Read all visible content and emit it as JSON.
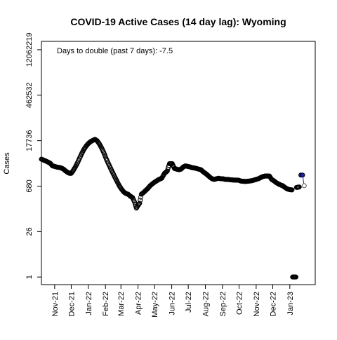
{
  "chart_data": {
    "type": "scatter",
    "title": "COVID-19 Active Cases (14 day lag): Wyoming",
    "xlabel": "",
    "ylabel": "Cases",
    "y_scale": "log",
    "annotation": "Days to double (past 7 days): -7.5",
    "x_range": [
      "2021-10-08",
      "2023-02-16"
    ],
    "y_range": [
      0.58,
      22000000
    ],
    "y_ticks": [
      {
        "value": 1,
        "label": "1"
      },
      {
        "value": 26,
        "label": "26"
      },
      {
        "value": 680,
        "label": "680"
      },
      {
        "value": 17736,
        "label": "17736"
      },
      {
        "value": 462532,
        "label": "462532"
      },
      {
        "value": 12062219,
        "label": "12062219"
      }
    ],
    "x_ticks": [
      {
        "date": "2021-11-01",
        "label": "Nov-21"
      },
      {
        "date": "2021-12-01",
        "label": "Dec-21"
      },
      {
        "date": "2022-01-01",
        "label": "Jan-22"
      },
      {
        "date": "2022-02-01",
        "label": "Feb-22"
      },
      {
        "date": "2022-03-01",
        "label": "Mar-22"
      },
      {
        "date": "2022-04-01",
        "label": "Apr-22"
      },
      {
        "date": "2022-05-01",
        "label": "May-22"
      },
      {
        "date": "2022-06-01",
        "label": "Jun-22"
      },
      {
        "date": "2022-07-01",
        "label": "Jul-22"
      },
      {
        "date": "2022-08-01",
        "label": "Aug-22"
      },
      {
        "date": "2022-09-01",
        "label": "Sep-22"
      },
      {
        "date": "2022-10-01",
        "label": "Oct-22"
      },
      {
        "date": "2022-11-01",
        "label": "Nov-22"
      },
      {
        "date": "2022-12-01",
        "label": "Dec-22"
      },
      {
        "date": "2023-01-01",
        "label": "Jan-23"
      }
    ],
    "grid": false,
    "point_style": "open circle",
    "colors": {
      "points": "#000000",
      "highlight": "#1f1fb4",
      "predicted": "#555555"
    },
    "series": [
      {
        "style": "observed",
        "points": [
          [
            "2021-10-08",
            4700
          ],
          [
            "2021-10-12",
            4400
          ],
          [
            "2021-10-16",
            4100
          ],
          [
            "2021-10-20",
            3800
          ],
          [
            "2021-10-24",
            3500
          ],
          [
            "2021-10-28",
            2900
          ],
          [
            "2021-11-01",
            2800
          ],
          [
            "2021-11-05",
            2650
          ],
          [
            "2021-11-09",
            2600
          ],
          [
            "2021-11-13",
            2500
          ],
          [
            "2021-11-17",
            2300
          ],
          [
            "2021-11-21",
            2000
          ],
          [
            "2021-11-25",
            1800
          ],
          [
            "2021-11-28",
            1700
          ],
          [
            "2021-12-01",
            1700
          ],
          [
            "2021-12-04",
            2000
          ],
          [
            "2021-12-08",
            2600
          ],
          [
            "2021-12-12",
            3500
          ],
          [
            "2021-12-16",
            5000
          ],
          [
            "2021-12-20",
            7000
          ],
          [
            "2021-12-24",
            9500
          ],
          [
            "2021-12-28",
            12000
          ],
          [
            "2022-01-01",
            14500
          ],
          [
            "2022-01-05",
            16500
          ],
          [
            "2022-01-09",
            18000
          ],
          [
            "2022-01-13",
            19500
          ],
          [
            "2022-01-17",
            17500
          ],
          [
            "2022-01-21",
            14000
          ],
          [
            "2022-01-25",
            10500
          ],
          [
            "2022-01-29",
            7500
          ],
          [
            "2022-02-02",
            5000
          ],
          [
            "2022-02-06",
            3500
          ],
          [
            "2022-02-10",
            2500
          ],
          [
            "2022-02-14",
            1800
          ],
          [
            "2022-02-18",
            1300
          ],
          [
            "2022-02-22",
            950
          ],
          [
            "2022-02-26",
            700
          ],
          [
            "2022-03-02",
            550
          ],
          [
            "2022-03-06",
            450
          ],
          [
            "2022-03-10",
            400
          ],
          [
            "2022-03-14",
            380
          ],
          [
            "2022-03-18",
            330
          ],
          [
            "2022-03-22",
            300
          ],
          [
            "2022-03-26",
            210
          ],
          [
            "2022-03-29",
            140
          ],
          [
            "2022-04-01",
            170
          ],
          [
            "2022-04-04",
            200
          ],
          [
            "2022-04-07",
            380
          ],
          [
            "2022-04-11",
            430
          ],
          [
            "2022-04-15",
            500
          ],
          [
            "2022-04-19",
            580
          ],
          [
            "2022-04-23",
            700
          ],
          [
            "2022-04-27",
            800
          ],
          [
            "2022-05-01",
            900
          ],
          [
            "2022-05-05",
            1000
          ],
          [
            "2022-05-09",
            1100
          ],
          [
            "2022-05-14",
            1200
          ],
          [
            "2022-05-19",
            1700
          ],
          [
            "2022-05-24",
            2000
          ],
          [
            "2022-05-28",
            3400
          ],
          [
            "2022-06-02",
            3400
          ],
          [
            "2022-06-06",
            2400
          ],
          [
            "2022-06-10",
            2300
          ],
          [
            "2022-06-14",
            2200
          ],
          [
            "2022-06-18",
            2300
          ],
          [
            "2022-06-22",
            2700
          ],
          [
            "2022-06-26",
            2900
          ],
          [
            "2022-06-30",
            2800
          ],
          [
            "2022-07-04",
            2700
          ],
          [
            "2022-07-08",
            2550
          ],
          [
            "2022-07-12",
            2500
          ],
          [
            "2022-07-16",
            2400
          ],
          [
            "2022-07-20",
            2300
          ],
          [
            "2022-07-24",
            2200
          ],
          [
            "2022-07-28",
            1900
          ],
          [
            "2022-08-01",
            1700
          ],
          [
            "2022-08-05",
            1500
          ],
          [
            "2022-08-09",
            1300
          ],
          [
            "2022-08-13",
            1150
          ],
          [
            "2022-08-17",
            1100
          ],
          [
            "2022-08-21",
            1150
          ],
          [
            "2022-08-25",
            1200
          ],
          [
            "2022-08-29",
            1150
          ],
          [
            "2022-09-02",
            1150
          ],
          [
            "2022-09-06",
            1100
          ],
          [
            "2022-09-10",
            1100
          ],
          [
            "2022-09-14",
            1080
          ],
          [
            "2022-09-18",
            1060
          ],
          [
            "2022-09-22",
            1050
          ],
          [
            "2022-09-26",
            1050
          ],
          [
            "2022-09-30",
            1040
          ],
          [
            "2022-10-04",
            980
          ],
          [
            "2022-10-08",
            960
          ],
          [
            "2022-10-12",
            950
          ],
          [
            "2022-10-16",
            960
          ],
          [
            "2022-10-20",
            980
          ],
          [
            "2022-10-24",
            1000
          ],
          [
            "2022-10-28",
            1050
          ],
          [
            "2022-11-01",
            1100
          ],
          [
            "2022-11-05",
            1150
          ],
          [
            "2022-11-09",
            1250
          ],
          [
            "2022-11-13",
            1350
          ],
          [
            "2022-11-17",
            1400
          ],
          [
            "2022-11-21",
            1400
          ],
          [
            "2022-11-25",
            1400
          ],
          [
            "2022-11-29",
            1100
          ],
          [
            "2022-12-03",
            1000
          ],
          [
            "2022-12-07",
            880
          ],
          [
            "2022-12-11",
            800
          ],
          [
            "2022-12-15",
            740
          ],
          [
            "2022-12-19",
            700
          ],
          [
            "2022-12-23",
            620
          ],
          [
            "2022-12-27",
            560
          ],
          [
            "2022-12-31",
            530
          ],
          [
            "2023-01-04",
            520
          ],
          [
            "2023-01-08",
            1.0
          ],
          [
            "2023-01-11",
            1.0
          ],
          [
            "2023-01-14",
            620
          ],
          [
            "2023-01-18",
            640
          ]
        ]
      },
      {
        "style": "highlighted",
        "points": [
          [
            "2023-01-21",
            1500
          ],
          [
            "2023-01-24",
            1500
          ]
        ]
      },
      {
        "style": "predicted",
        "points": [
          [
            "2023-01-27",
            700
          ]
        ]
      }
    ]
  }
}
